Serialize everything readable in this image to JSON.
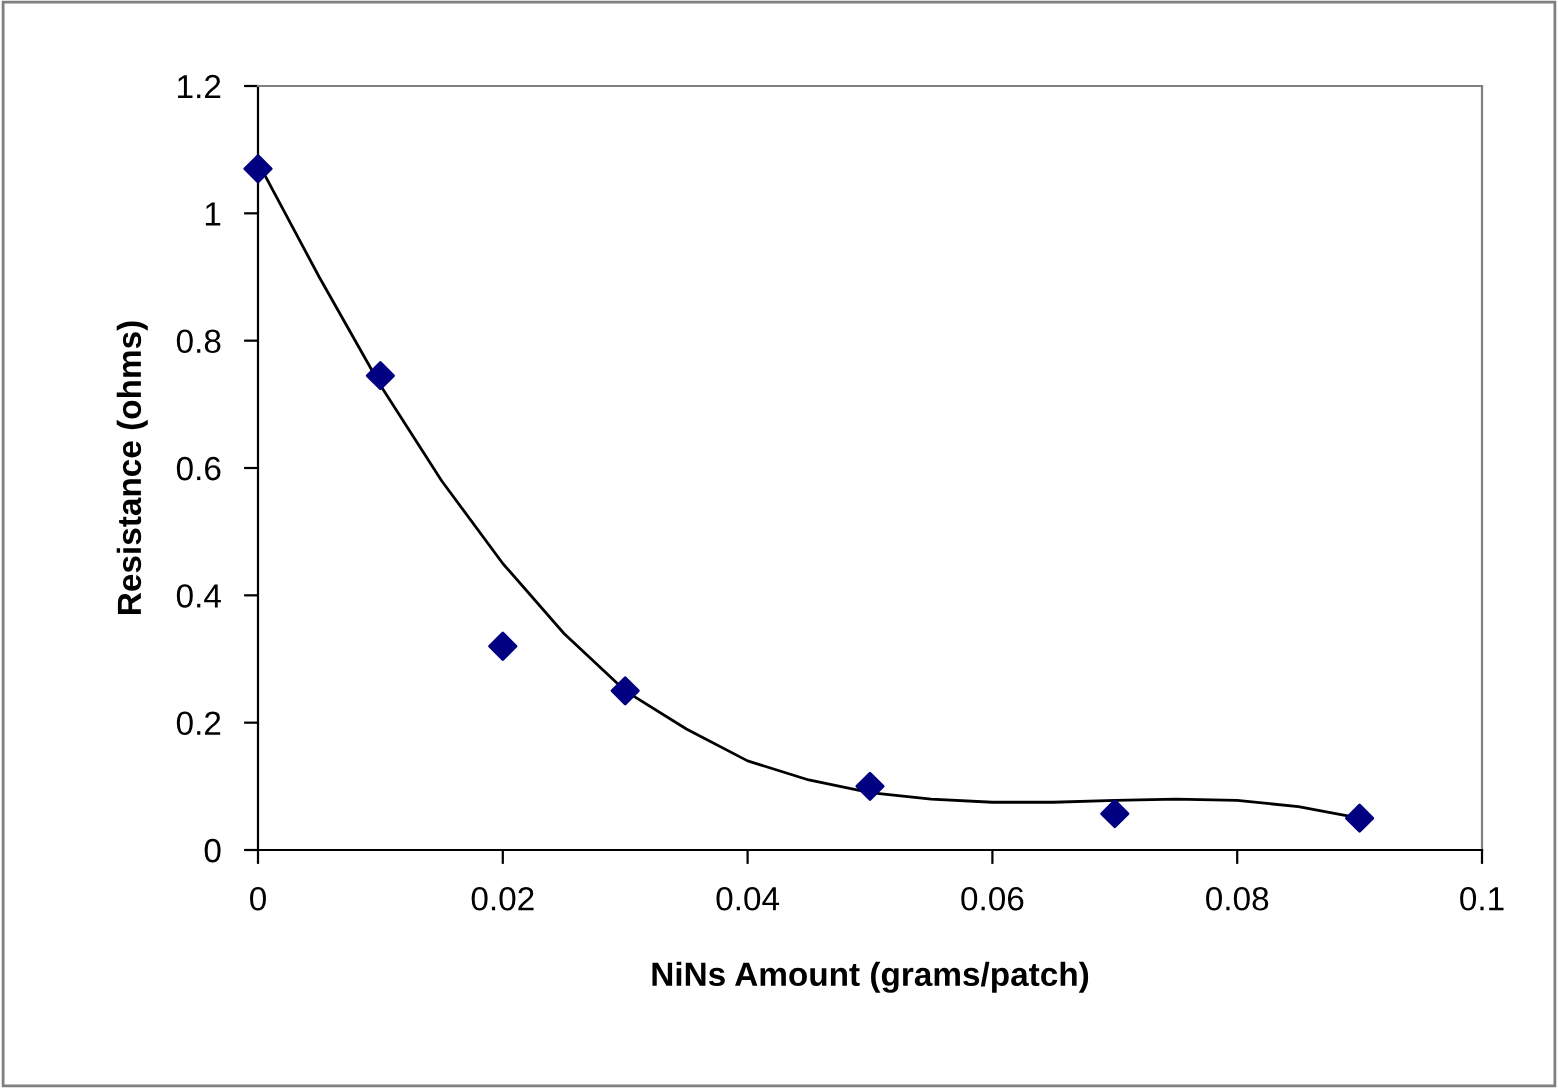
{
  "chart_data": {
    "type": "scatter",
    "xlabel": "NiNs Amount (grams/patch)",
    "ylabel": "Resistance (ohms)",
    "xlim": [
      0,
      0.1
    ],
    "xticks": [
      0,
      0.02,
      0.04,
      0.06,
      0.08,
      0.1
    ],
    "ylim": [
      0,
      1.2
    ],
    "yticks": [
      0,
      0.2,
      0.4,
      0.6,
      0.8,
      1,
      1.2
    ],
    "grid": false,
    "legend": false,
    "series": [
      {
        "color": "#000080",
        "marker": "diamond",
        "x": [
          0,
          0.01,
          0.02,
          0.03,
          0.05,
          0.07,
          0.09
        ],
        "values": [
          1.07,
          0.745,
          0.32,
          0.25,
          0.1,
          0.057,
          0.05
        ]
      },
      {
        "type": "line",
        "color": "#000000",
        "marker": "none",
        "line_style": "solid",
        "x": [
          0,
          0.005,
          0.01,
          0.015,
          0.02,
          0.025,
          0.03,
          0.035,
          0.04,
          0.045,
          0.05,
          0.055,
          0.06,
          0.065,
          0.07,
          0.075,
          0.08,
          0.085,
          0.09
        ],
        "values": [
          1.08,
          0.9,
          0.73,
          0.58,
          0.45,
          0.34,
          0.25,
          0.19,
          0.14,
          0.11,
          0.09,
          0.08,
          0.075,
          0.075,
          0.078,
          0.08,
          0.078,
          0.068,
          0.05
        ]
      }
    ]
  }
}
